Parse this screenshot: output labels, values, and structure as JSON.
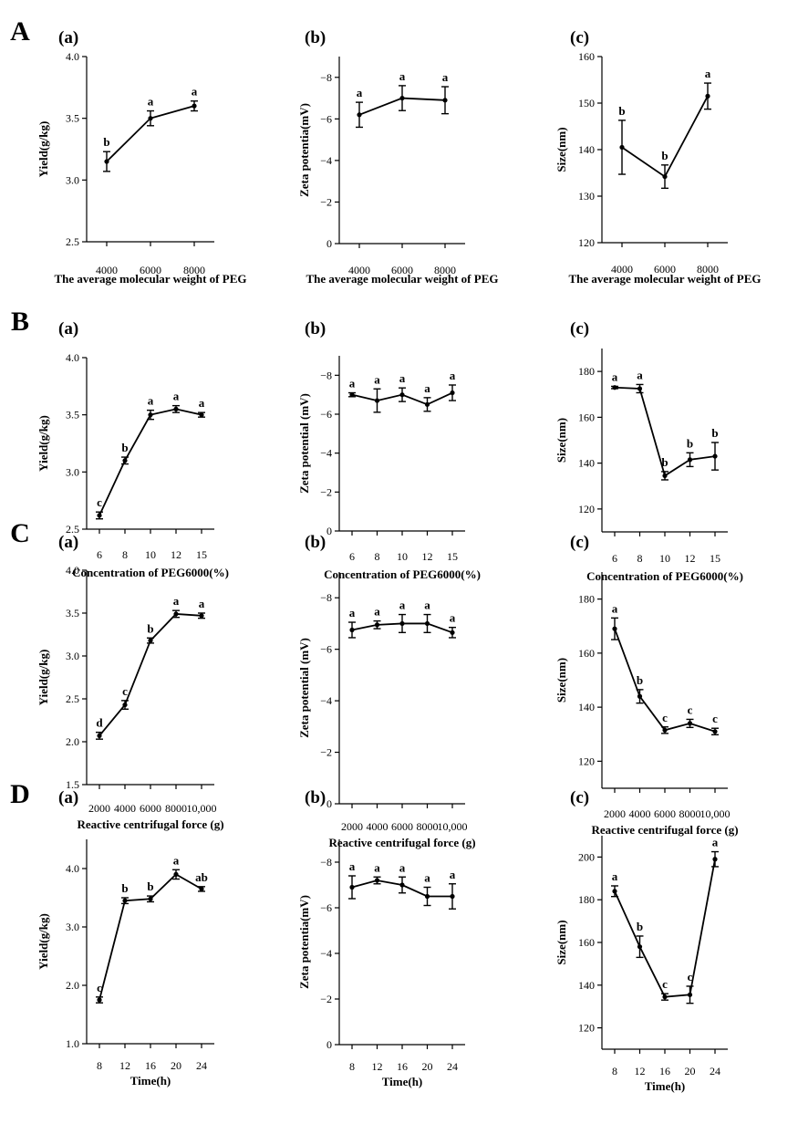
{
  "chart_data": [
    {
      "row": "A",
      "panel": "(a)",
      "type": "line",
      "categories": [
        "4000",
        "6000",
        "8000"
      ],
      "values": [
        3.15,
        3.5,
        3.6
      ],
      "errors": [
        0.08,
        0.06,
        0.04
      ],
      "letters": [
        "b",
        "a",
        "a"
      ],
      "ylabel": "Yield(g/kg)",
      "xlabel": "The average molecular weight of PEG",
      "ylim": [
        2.5,
        4.0
      ],
      "yticks": [
        "2.5",
        "3.0",
        "3.5",
        "4.0"
      ],
      "grid": false
    },
    {
      "row": "A",
      "panel": "(b)",
      "type": "line",
      "categories": [
        "4000",
        "6000",
        "8000"
      ],
      "values": [
        -6.2,
        -7.0,
        -6.9
      ],
      "errors": [
        0.6,
        0.6,
        0.65
      ],
      "letters": [
        "a",
        "a",
        "a"
      ],
      "ylabel": "Zeta potentia(mV)",
      "xlabel": "The average molecular weight of PEG",
      "ylim": [
        0,
        -9
      ],
      "yticks": [
        "0",
        "−2",
        "−4",
        "−6",
        "−8"
      ],
      "grid": false
    },
    {
      "row": "A",
      "panel": "(c)",
      "type": "line",
      "categories": [
        "4000",
        "6000",
        "8000"
      ],
      "values": [
        140.5,
        134.2,
        151.5
      ],
      "errors": [
        5.8,
        2.5,
        2.8
      ],
      "letters": [
        "b",
        "b",
        "a"
      ],
      "ylabel": "Size(nm)",
      "xlabel": "The average molecular weight of PEG",
      "ylim": [
        120,
        160
      ],
      "yticks": [
        "120",
        "130",
        "140",
        "150",
        "160"
      ],
      "grid": false
    },
    {
      "row": "B",
      "panel": "(a)",
      "type": "line",
      "categories": [
        "6",
        "8",
        "10",
        "12",
        "15"
      ],
      "values": [
        2.62,
        3.1,
        3.5,
        3.55,
        3.5
      ],
      "errors": [
        0.03,
        0.03,
        0.04,
        0.03,
        0.02
      ],
      "letters": [
        "c",
        "b",
        "a",
        "a",
        "a"
      ],
      "ylabel": "Yield(g/kg)",
      "xlabel": "Concentration of PEG6000(%)",
      "ylim": [
        2.5,
        4.0
      ],
      "yticks": [
        "2.5",
        "3.0",
        "3.5",
        "4.0"
      ],
      "grid": false
    },
    {
      "row": "B",
      "panel": "(b)",
      "type": "line",
      "categories": [
        "6",
        "8",
        "10",
        "12",
        "15"
      ],
      "values": [
        -7.0,
        -6.7,
        -7.0,
        -6.5,
        -7.1
      ],
      "errors": [
        0.1,
        0.6,
        0.35,
        0.35,
        0.4
      ],
      "letters": [
        "a",
        "a",
        "a",
        "a",
        "a"
      ],
      "ylabel": "Zeta potential (mV)",
      "xlabel": "Concentration of PEG6000(%)",
      "ylim": [
        0,
        -9
      ],
      "yticks": [
        "0",
        "−2",
        "−4",
        "−6",
        "−8"
      ],
      "grid": false
    },
    {
      "row": "B",
      "panel": "(c)",
      "type": "line",
      "categories": [
        "6",
        "8",
        "10",
        "12",
        "15"
      ],
      "values": [
        173,
        172.5,
        134.5,
        141.5,
        143
      ],
      "errors": [
        0.5,
        1.8,
        1.8,
        3.0,
        6.0
      ],
      "letters": [
        "a",
        "a",
        "b",
        "b",
        "b"
      ],
      "ylabel": "Size(nm)",
      "xlabel": "Concentration of PEG6000(%)",
      "ylim": [
        110,
        190
      ],
      "yticks": [
        "120",
        "140",
        "160",
        "180"
      ],
      "grid": false
    },
    {
      "row": "C",
      "panel": "(a)",
      "type": "line",
      "categories": [
        "2000",
        "4000",
        "6000",
        "8000",
        "10,000"
      ],
      "values": [
        2.07,
        2.43,
        3.18,
        3.49,
        3.47
      ],
      "errors": [
        0.04,
        0.05,
        0.03,
        0.04,
        0.03
      ],
      "letters": [
        "d",
        "c",
        "b",
        "a",
        "a"
      ],
      "ylabel": "Yield(g/kg)",
      "xlabel": "Reactive centrifugal force (g)",
      "ylim": [
        1.5,
        4.0
      ],
      "yticks": [
        "1.5",
        "2.0",
        "2.5",
        "3.0",
        "3.5",
        "4.0"
      ],
      "grid": false
    },
    {
      "row": "C",
      "panel": "(b)",
      "type": "line",
      "categories": [
        "2000",
        "4000",
        "6000",
        "8000",
        "10,000"
      ],
      "values": [
        -6.75,
        -6.95,
        -7.0,
        -7.0,
        -6.65
      ],
      "errors": [
        0.3,
        0.15,
        0.35,
        0.35,
        0.2
      ],
      "letters": [
        "a",
        "a",
        "a",
        "a",
        "a"
      ],
      "ylabel": "Zeta potential (mV)",
      "xlabel": "Reactive centrifugal force (g)",
      "ylim": [
        0,
        -9
      ],
      "yticks": [
        "0",
        "−2",
        "−4",
        "−6",
        "−8"
      ],
      "grid": false
    },
    {
      "row": "C",
      "panel": "(c)",
      "type": "line",
      "categories": [
        "2000",
        "4000",
        "6000",
        "8000",
        "10,000"
      ],
      "values": [
        169,
        144,
        131.5,
        134,
        131
      ],
      "errors": [
        4.0,
        2.5,
        1.2,
        1.5,
        1.2
      ],
      "letters": [
        "a",
        "b",
        "c",
        "c",
        "c"
      ],
      "ylabel": "Size(nm)",
      "xlabel": "Reactive centrifugal force (g)",
      "ylim": [
        110,
        190
      ],
      "yticks": [
        "120",
        "140",
        "160",
        "180"
      ],
      "grid": false
    },
    {
      "row": "D",
      "panel": "(a)",
      "type": "line",
      "categories": [
        "8",
        "12",
        "16",
        "20",
        "24"
      ],
      "values": [
        1.75,
        3.45,
        3.48,
        3.9,
        3.65
      ],
      "errors": [
        0.05,
        0.05,
        0.05,
        0.08,
        0.04
      ],
      "letters": [
        "c",
        "b",
        "b",
        "a",
        "ab"
      ],
      "ylabel": "Yield(g/kg)",
      "xlabel": "Time(h)",
      "ylim": [
        1.0,
        4.5
      ],
      "yticks": [
        "1.0",
        "2.0",
        "3.0",
        "4.0"
      ],
      "grid": false
    },
    {
      "row": "D",
      "panel": "(b)",
      "type": "line",
      "categories": [
        "8",
        "12",
        "16",
        "20",
        "24"
      ],
      "values": [
        -6.9,
        -7.2,
        -7.0,
        -6.5,
        -6.5
      ],
      "errors": [
        0.5,
        0.15,
        0.35,
        0.4,
        0.55
      ],
      "letters": [
        "a",
        "a",
        "a",
        "a",
        "a"
      ],
      "ylabel": "Zeta potentia(mV)",
      "xlabel": "Time(h)",
      "ylim": [
        0,
        -9
      ],
      "yticks": [
        "0",
        "−2",
        "−4",
        "−6",
        "−8"
      ],
      "grid": false
    },
    {
      "row": "D",
      "panel": "(c)",
      "type": "line",
      "categories": [
        "8",
        "12",
        "16",
        "20",
        "24"
      ],
      "values": [
        184,
        158,
        134.5,
        135.5,
        199
      ],
      "errors": [
        2.5,
        5.0,
        1.5,
        4.0,
        3.5
      ],
      "letters": [
        "a",
        "b",
        "c",
        "c",
        "a"
      ],
      "ylabel": "Size(nm)",
      "xlabel": "Time(h)",
      "ylim": [
        110,
        210
      ],
      "yticks": [
        "120",
        "140",
        "160",
        "180",
        "200"
      ],
      "grid": false
    }
  ],
  "row_labels": [
    "A",
    "B",
    "C",
    "D"
  ]
}
